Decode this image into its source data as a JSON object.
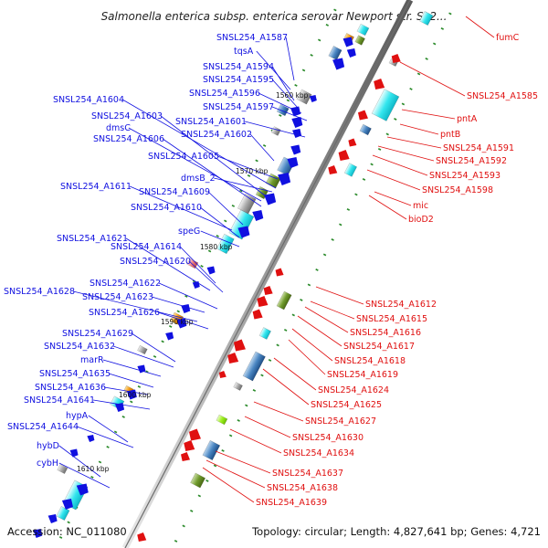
{
  "title": "Salmonella enterica subsp. enterica serovar Newport str. SL2...",
  "footer": {
    "accession": "Accession: NC_011080",
    "summary": "Topology: circular; Length: 4,827,641 bp; Genes: 4,721"
  },
  "colors": {
    "backbone": "#8a8a8a",
    "left_strand": "#1010e0",
    "right_strand": "#e01010",
    "tick": "#2a8a2a"
  },
  "scale_markers": [
    "1560 kbp",
    "1570 kbp",
    "1580 kbp",
    "1590 kbp",
    "1600 kbp",
    "1610 kbp"
  ],
  "left_labels": [
    "SNSL254_A1587",
    "tqsA",
    "SNSL254_A1594",
    "SNSL254_A1595",
    "SNSL254_A1596",
    "SNSL254_A1604",
    "SNSL254_A1597",
    "SNSL254_A1603",
    "SNSL254_A1601",
    "dmsC",
    "SNSL254_A1602",
    "SNSL254_A1606",
    "SNSL254_A1605",
    "dmsB_2",
    "SNSL254_A1611",
    "SNSL254_A1609",
    "SNSL254_A1610",
    "speG",
    "SNSL254_A1621",
    "SNSL254_A1614",
    "SNSL254_A1620",
    "SNSL254_A1622",
    "SNSL254_A1628",
    "SNSL254_A1623",
    "SNSL254_A1626",
    "SNSL254_A1629",
    "SNSL254_A1632",
    "marR",
    "SNSL254_A1635",
    "SNSL254_A1636",
    "SNSL254_A1641",
    "hypA",
    "SNSL254_A1644",
    "hybD",
    "cybH"
  ],
  "right_labels": [
    "fumC",
    "SNSL254_A1585",
    "pntA",
    "pntB",
    "SNSL254_A1591",
    "SNSL254_A1592",
    "SNSL254_A1593",
    "SNSL254_A1598",
    "mic",
    "bioD2",
    "SNSL254_A1612",
    "SNSL254_A1615",
    "SNSL254_A1616",
    "SNSL254_A1617",
    "SNSL254_A1618",
    "SNSL254_A1619",
    "SNSL254_A1624",
    "SNSL254_A1625",
    "SNSL254_A1627",
    "SNSL254_A1630",
    "SNSL254_A1634",
    "SNSL254_A1637",
    "SNSL254_A1638",
    "SNSL254_A1639"
  ]
}
